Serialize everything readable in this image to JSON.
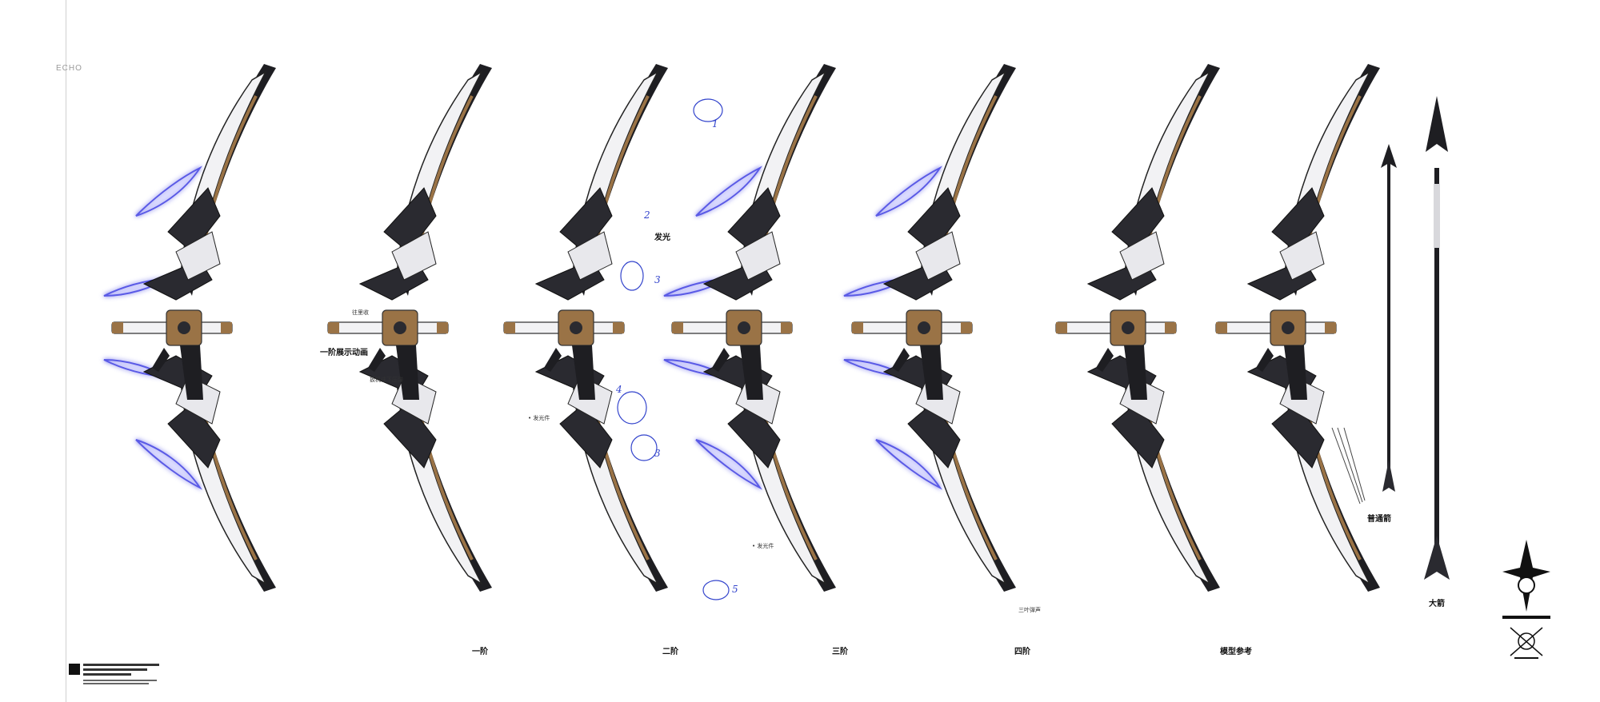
{
  "header": {
    "side_label": "ECHO"
  },
  "captions": [
    {
      "id": "stage1",
      "text": "一阶"
    },
    {
      "id": "stage2",
      "text": "二阶"
    },
    {
      "id": "stage3",
      "text": "三阶"
    },
    {
      "id": "stage4",
      "text": "四阶"
    },
    {
      "id": "model_ref",
      "text": "模型参考"
    },
    {
      "id": "normal_arrow",
      "text": "普通箭"
    },
    {
      "id": "ult_arrow",
      "text": "大箭"
    }
  ],
  "annotations": {
    "stage1_anim": "一阶展示动画",
    "stage1_retract": "往里收",
    "stage1_trigger": "扳机往下压弹",
    "stage2_glow": "发光",
    "stage2_glow_part": "• 发光件",
    "stage3_glow_part": "• 发光件",
    "stage4_sound": "三叶弹声",
    "sketch_numbers": [
      "1",
      "2",
      "3",
      "4",
      "3",
      "5"
    ]
  },
  "colors": {
    "glow": "#5a5ae6",
    "bronze": "#9a7346",
    "dark": "#1e1e22",
    "white_shell": "#f2f2f4"
  }
}
